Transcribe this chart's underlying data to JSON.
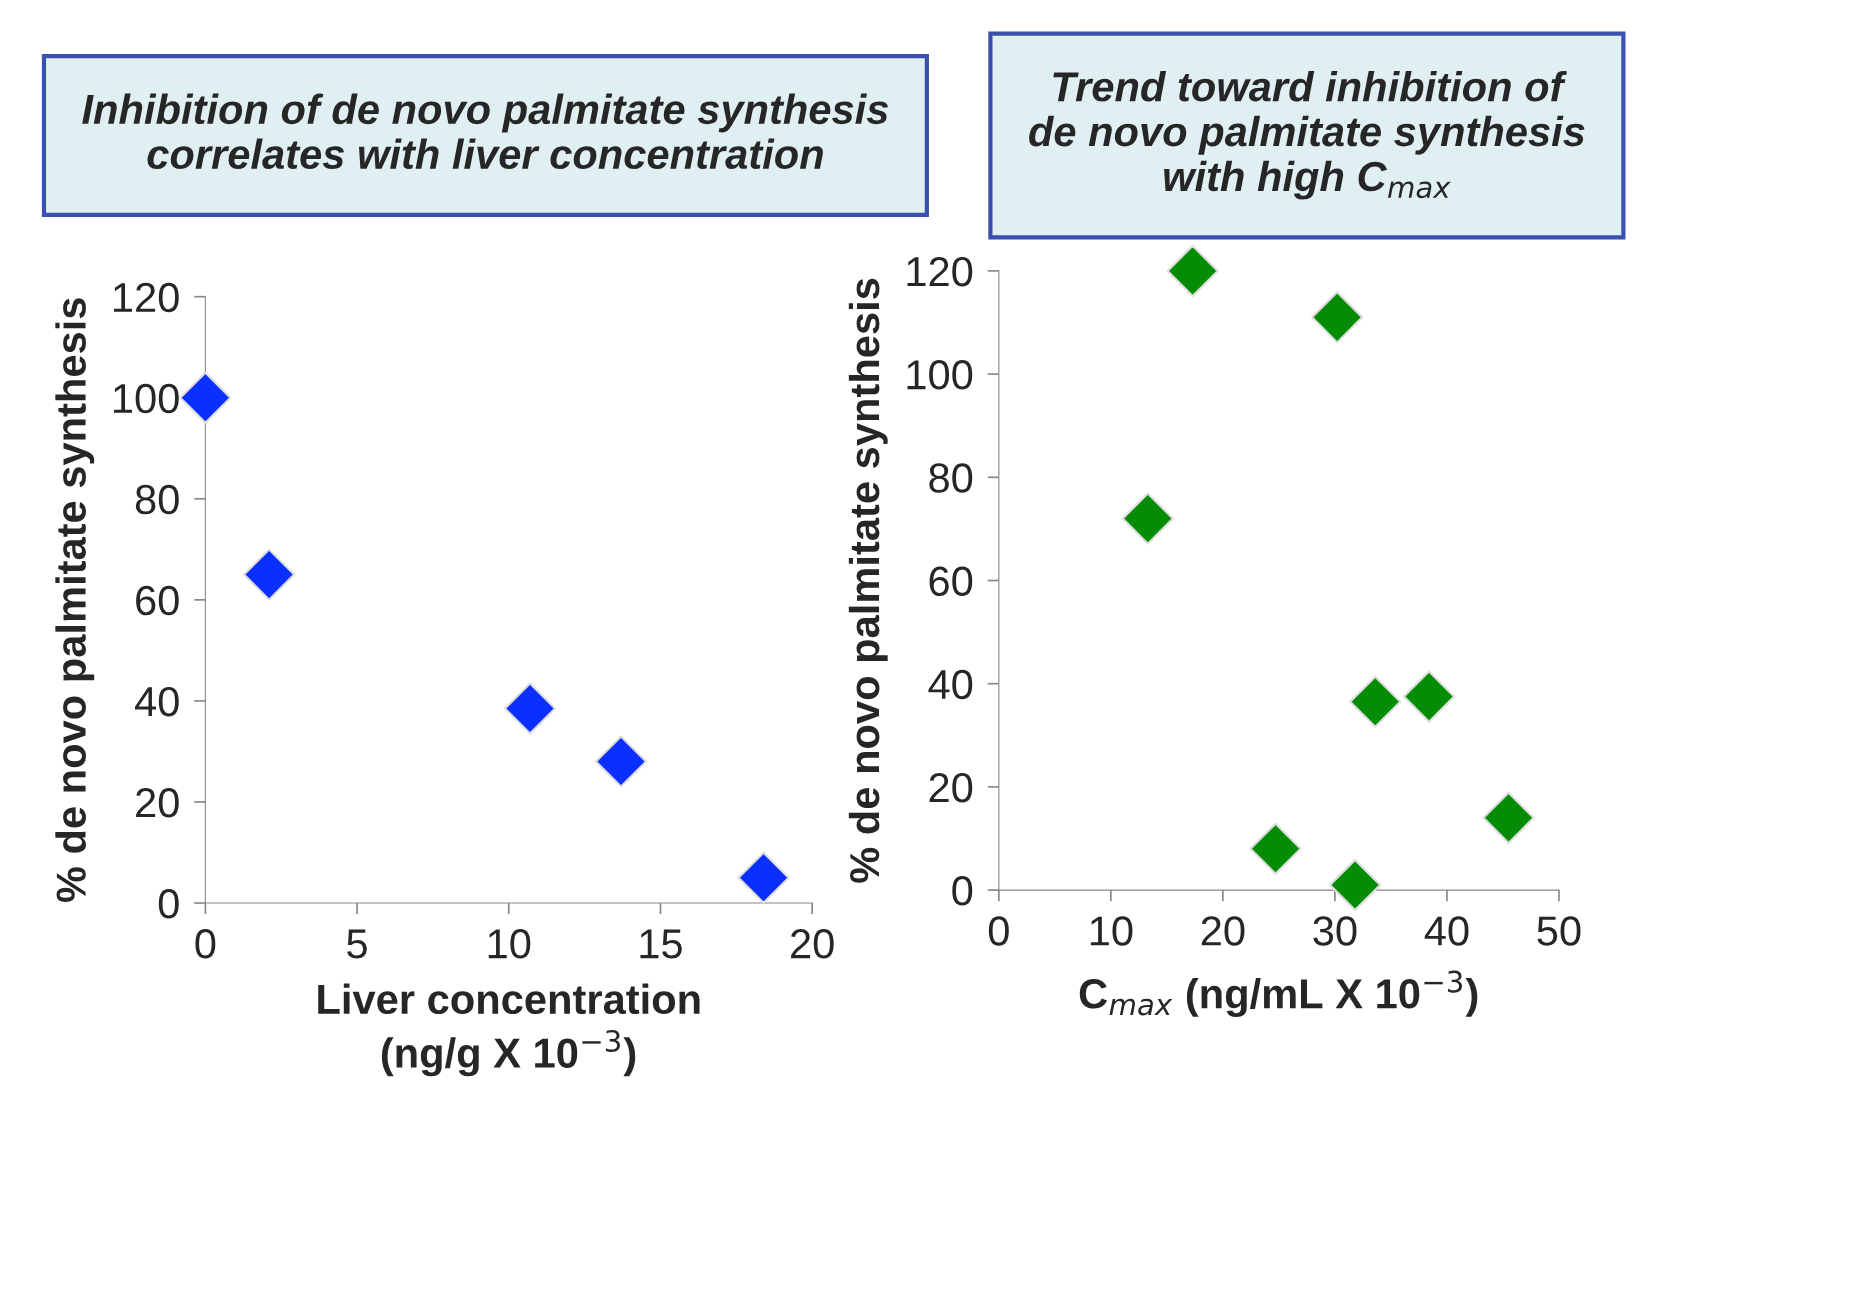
{
  "chart_data": [
    {
      "type": "scatter",
      "title": "Inhibition of de novo palmitate synthesis correlates with liver concentration",
      "xlabel": "Liver concentration\n(ng/g X 10$^{−3}$)",
      "ylabel": "% de novo palmitate synthesis",
      "marker": "diamond",
      "grid": false,
      "legend": false,
      "series": [
        {
          "color": "#0a2fff",
          "x": [
            0,
            2.1,
            10.7,
            13.7,
            18.4
          ],
          "values": [
            100,
            65,
            38.5,
            28,
            5
          ]
        }
      ],
      "xlim": [
        0,
        20
      ],
      "xticks": [
        0,
        5,
        10,
        15,
        20
      ],
      "ylim": [
        0,
        120
      ],
      "yticks": [
        0,
        20,
        40,
        60,
        80,
        100,
        120
      ]
    },
    {
      "type": "scatter",
      "title": "Trend toward inhibition of\nde novo palmitate synthesis\nwith high C$_{max}$",
      "xlabel": "C$_{max}$ (ng/mL X 10$^{−3}$)",
      "ylabel": "% de novo palmitate synthesis",
      "marker": "diamond",
      "grid": false,
      "legend": false,
      "series": [
        {
          "color": "#058c05",
          "x": [
            13.3,
            17.3,
            30.2,
            24.7,
            31.8,
            33.6,
            38.4,
            45.5
          ],
          "values": [
            72,
            120,
            111,
            8,
            1,
            36.5,
            37.5,
            14
          ]
        }
      ],
      "xlim": [
        0,
        50
      ],
      "xticks": [
        0,
        10,
        20,
        30,
        40,
        50
      ],
      "ylim": [
        0,
        120
      ],
      "yticks": [
        0,
        20,
        40,
        60,
        80,
        100,
        120
      ]
    }
  ]
}
